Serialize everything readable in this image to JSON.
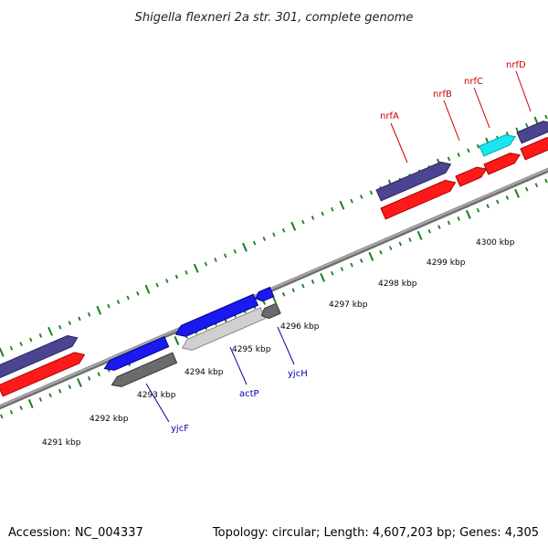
{
  "title": "Shigella flexneri 2a str. 301, complete genome",
  "footer": {
    "accession": "Accession: NC_004337",
    "summary": "Topology: circular; Length: 4,607,203 bp; Genes: 4,305"
  },
  "colors": {
    "backbone": "#888888",
    "tick": "#1a7f1a",
    "forward_label": "#cc0000",
    "reverse_label": "#0000aa",
    "navy": "#4b4490",
    "red": "#ff1a1a",
    "cyan": "#19e6f0",
    "blue": "#1a1aee",
    "dark_gray": "#6b6b6b",
    "light_gray": "#d0d0d0"
  },
  "ticks": [
    {
      "label": "4291 kbp"
    },
    {
      "label": "4292 kbp"
    },
    {
      "label": "4293 kbp"
    },
    {
      "label": "4294 kbp"
    },
    {
      "label": "4295 kbp"
    },
    {
      "label": "4296 kbp"
    },
    {
      "label": "4297 kbp"
    },
    {
      "label": "4298 kbp"
    },
    {
      "label": "4299 kbp"
    },
    {
      "label": "4300 kbp"
    }
  ],
  "genes_labeled": [
    {
      "name": "nrfA",
      "strand": "forward"
    },
    {
      "name": "nrfB",
      "strand": "forward"
    },
    {
      "name": "nrfC",
      "strand": "forward"
    },
    {
      "name": "nrfD",
      "strand": "forward"
    },
    {
      "name": "yjcF",
      "strand": "reverse"
    },
    {
      "name": "actP",
      "strand": "reverse"
    },
    {
      "name": "yjcH",
      "strand": "reverse"
    }
  ]
}
